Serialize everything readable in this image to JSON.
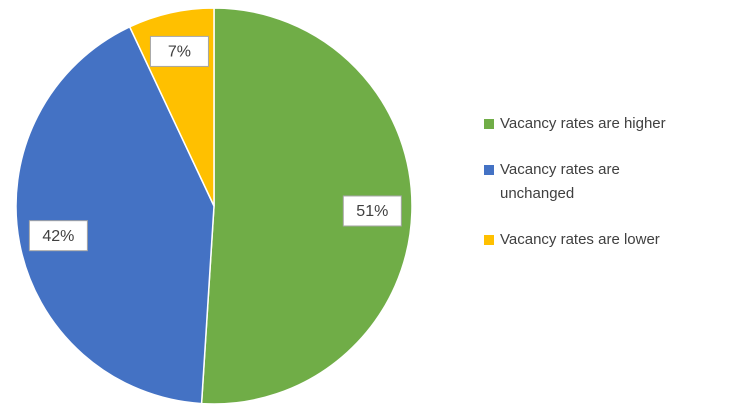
{
  "chart_data": {
    "type": "pie",
    "categories": [
      "Vacancy rates are higher",
      "Vacancy rates are unchanged",
      "Vacancy rates are lower"
    ],
    "values": [
      51,
      42,
      7
    ],
    "value_labels": [
      "51%",
      "42%",
      "7%"
    ],
    "colors": [
      "#70ad47",
      "#4472c4",
      "#ffc000"
    ],
    "legend": "right"
  }
}
